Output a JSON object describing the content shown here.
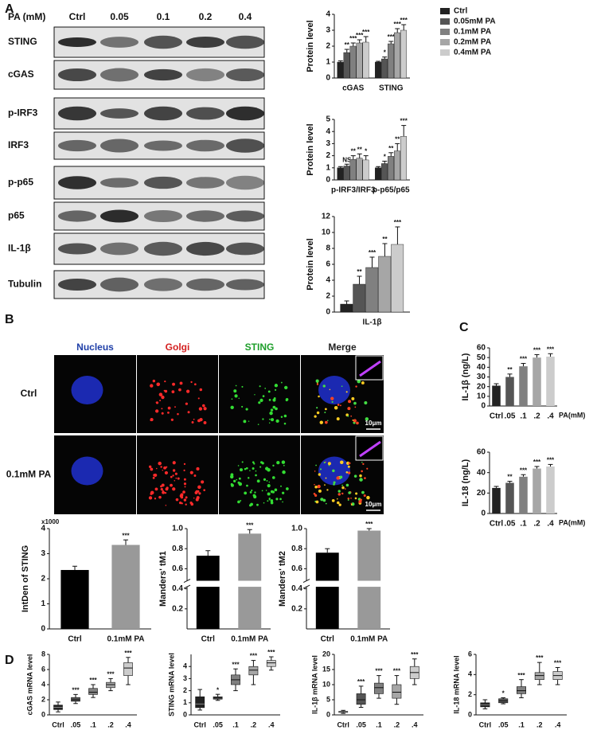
{
  "panels": [
    "A",
    "B",
    "C",
    "D"
  ],
  "blot": {
    "header": "PA (mM)",
    "lanes": [
      "Ctrl",
      "0.05",
      "0.1",
      "0.2",
      "0.4"
    ],
    "rows": [
      "STING",
      "cGAS",
      "p-IRF3",
      "IRF3",
      "p-p65",
      "p65",
      "IL-1β",
      "Tubulin"
    ]
  },
  "imaging": {
    "columns": [
      "Nucleus",
      "Golgi",
      "STING",
      "Merge"
    ],
    "rows": [
      "Ctrl",
      "0.1mM PA"
    ],
    "scale_bars": [
      "10μm",
      "10μm"
    ]
  },
  "chart_data": [
    {
      "type": "bar",
      "ylabel": "Protein level",
      "categories": [
        "cGAS",
        "STING"
      ],
      "ylim": [
        0,
        4
      ],
      "yticks": [
        0,
        1,
        2,
        3,
        4
      ],
      "legend": "right",
      "series": [
        {
          "name": "Ctrl",
          "color": "#222222",
          "values": [
            1,
            1
          ],
          "errors": [
            0.08,
            0.05
          ],
          "annotations": [
            null,
            null
          ]
        },
        {
          "name": "0.05mM PA",
          "color": "#555555",
          "values": [
            1.6,
            1.2
          ],
          "errors": [
            0.2,
            0.12
          ],
          "annotations": [
            "**",
            "*"
          ]
        },
        {
          "name": "0.1mM PA",
          "color": "#808080",
          "values": [
            2.0,
            2.15
          ],
          "errors": [
            0.2,
            0.15
          ],
          "annotations": [
            "***",
            "***"
          ]
        },
        {
          "name": "0.2mM PA",
          "color": "#a6a6a6",
          "values": [
            2.2,
            2.85
          ],
          "errors": [
            0.2,
            0.25
          ],
          "annotations": [
            "***",
            "***"
          ]
        },
        {
          "name": "0.4mM PA",
          "color": "#cccccc",
          "values": [
            2.25,
            3.0
          ],
          "errors": [
            0.35,
            0.35
          ],
          "annotations": [
            "***",
            "***"
          ]
        }
      ]
    },
    {
      "type": "bar",
      "ylabel": "Protein level",
      "categories": [
        "p-IRF3/IRF3",
        "p-p65/p65"
      ],
      "ylim": [
        0,
        5
      ],
      "yticks": [
        0,
        1,
        2,
        3,
        4,
        5
      ],
      "series": [
        {
          "color": "#222222",
          "values": [
            1,
            1
          ],
          "errors": [
            0.1,
            0.1
          ],
          "annotations": [
            null,
            null
          ]
        },
        {
          "color": "#555555",
          "values": [
            1.15,
            1.35
          ],
          "errors": [
            0.15,
            0.2
          ],
          "annotations": [
            "NS",
            "*"
          ]
        },
        {
          "color": "#808080",
          "values": [
            1.7,
            1.95
          ],
          "errors": [
            0.3,
            0.3
          ],
          "annotations": [
            "**",
            "**"
          ]
        },
        {
          "color": "#a6a6a6",
          "values": [
            1.8,
            2.4
          ],
          "errors": [
            0.35,
            0.6
          ],
          "annotations": [
            "**",
            "**"
          ]
        },
        {
          "color": "#cccccc",
          "values": [
            1.65,
            3.6
          ],
          "errors": [
            0.35,
            0.9
          ],
          "annotations": [
            "*",
            "***"
          ]
        }
      ]
    },
    {
      "type": "bar",
      "ylabel": "Protein level",
      "categories": [
        "IL-1β"
      ],
      "ylim": [
        0,
        12
      ],
      "yticks": [
        0,
        2,
        4,
        6,
        8,
        10,
        12
      ],
      "series": [
        {
          "color": "#222222",
          "values": [
            1
          ],
          "errors": [
            0.4
          ],
          "annotations": [
            null
          ]
        },
        {
          "color": "#555555",
          "values": [
            3.5
          ],
          "errors": [
            1.0
          ],
          "annotations": [
            "**"
          ]
        },
        {
          "color": "#808080",
          "values": [
            5.6
          ],
          "errors": [
            1.3
          ],
          "annotations": [
            "***"
          ]
        },
        {
          "color": "#a6a6a6",
          "values": [
            7.0
          ],
          "errors": [
            1.6
          ],
          "annotations": [
            "**"
          ]
        },
        {
          "color": "#cccccc",
          "values": [
            8.5
          ],
          "errors": [
            2.2
          ],
          "annotations": [
            "***"
          ]
        }
      ]
    },
    {
      "type": "bar",
      "ylabel": "IntDen of STING",
      "yscale_label": "x1000",
      "categories": [
        "Ctrl",
        "0.1mM PA"
      ],
      "values": [
        2.35,
        3.35
      ],
      "errors": [
        0.15,
        0.2
      ],
      "colors": [
        "#000000",
        "#999999"
      ],
      "annotations": [
        null,
        "***"
      ],
      "ylim": [
        0,
        4
      ],
      "yticks": [
        0,
        1,
        2,
        3,
        4
      ]
    },
    {
      "type": "bar",
      "ylabel": "Manders' tM1",
      "categories": [
        "Ctrl",
        "0.1mM PA"
      ],
      "values": [
        0.73,
        0.95
      ],
      "errors": [
        0.05,
        0.04
      ],
      "colors": [
        "#000000",
        "#999999"
      ],
      "annotations": [
        null,
        "***"
      ],
      "ylim": [
        0,
        1
      ],
      "ybreak": [
        0.42,
        0.48
      ],
      "yticks": [
        0.2,
        0.4,
        0.6,
        0.8,
        {
          "value": 1,
          "label": "1.0"
        }
      ]
    },
    {
      "type": "bar",
      "ylabel": "Manders' tM2",
      "categories": [
        "Ctrl",
        "0.1mM PA"
      ],
      "values": [
        0.76,
        0.98
      ],
      "errors": [
        0.04,
        0.02
      ],
      "colors": [
        "#000000",
        "#999999"
      ],
      "annotations": [
        null,
        "***"
      ],
      "ylim": [
        0,
        1
      ],
      "ybreak": [
        0.42,
        0.48
      ],
      "yticks": [
        0.2,
        0.4,
        0.6,
        0.8,
        {
          "value": 1,
          "label": "1.0"
        }
      ]
    },
    {
      "type": "bar",
      "ylabel": "IL-1β (ng/L)",
      "xlabel": "PA(mM)",
      "categories": [
        "Ctrl",
        ".05",
        ".1",
        ".2",
        ".4"
      ],
      "values": [
        21,
        30,
        41,
        50,
        51
      ],
      "errors": [
        2,
        3,
        3,
        3,
        3
      ],
      "colors": [
        "#222222",
        "#555555",
        "#808080",
        "#a6a6a6",
        "#cccccc"
      ],
      "annotations": [
        null,
        "**",
        "***",
        "***",
        "***"
      ],
      "ylim": [
        0,
        60
      ],
      "yticks": [
        0,
        10,
        20,
        30,
        40,
        50,
        60
      ]
    },
    {
      "type": "bar",
      "ylabel": "IL-18 (ng/L)",
      "xlabel": "PA(mM)",
      "categories": [
        "Ctrl",
        ".05",
        ".1",
        ".2",
        ".4"
      ],
      "values": [
        25,
        30,
        36,
        44,
        46
      ],
      "errors": [
        1.5,
        1.5,
        2,
        2,
        2
      ],
      "colors": [
        "#222222",
        "#555555",
        "#808080",
        "#a6a6a6",
        "#cccccc"
      ],
      "annotations": [
        null,
        "**",
        "***",
        "***",
        "***"
      ],
      "ylim": [
        0,
        60
      ],
      "yticks": [
        0,
        20,
        40,
        60
      ]
    },
    {
      "type": "box",
      "ylabel": "cGAS mRNA level",
      "categories": [
        "Ctrl",
        ".05",
        ".1",
        ".2",
        ".4"
      ],
      "ylim": [
        0,
        8
      ],
      "yticks": [
        0,
        2,
        4,
        6,
        8
      ],
      "colors": [
        "#222222",
        "#555555",
        "#808080",
        "#a6a6a6",
        "#cccccc"
      ],
      "annotations": [
        null,
        "***",
        "***",
        "***",
        "***"
      ],
      "boxes": [
        {
          "min": 0.4,
          "q1": 0.7,
          "median": 1.0,
          "q3": 1.3,
          "max": 1.7
        },
        {
          "min": 1.5,
          "q1": 1.8,
          "median": 2.0,
          "q3": 2.3,
          "max": 2.7
        },
        {
          "min": 2.3,
          "q1": 2.7,
          "median": 3.0,
          "q3": 3.5,
          "max": 4.0
        },
        {
          "min": 3.2,
          "q1": 3.6,
          "median": 4.0,
          "q3": 4.3,
          "max": 4.8
        },
        {
          "min": 4.0,
          "q1": 5.2,
          "median": 6.2,
          "q3": 6.9,
          "max": 7.6
        }
      ]
    },
    {
      "type": "box",
      "ylabel": "STING mRNA level",
      "categories": [
        "Ctrl",
        ".05",
        ".1",
        ".2",
        ".4"
      ],
      "ylim": [
        0,
        5
      ],
      "yticks": [
        0,
        1,
        2,
        3,
        4
      ],
      "colors": [
        "#222222",
        "#555555",
        "#808080",
        "#a6a6a6",
        "#cccccc"
      ],
      "annotations": [
        null,
        "*",
        "***",
        "***",
        "***"
      ],
      "boxes": [
        {
          "min": 0.4,
          "q1": 0.6,
          "median": 0.9,
          "q3": 1.5,
          "max": 2.1
        },
        {
          "min": 1.2,
          "q1": 1.3,
          "median": 1.4,
          "q3": 1.5,
          "max": 1.7
        },
        {
          "min": 2.0,
          "q1": 2.5,
          "median": 2.9,
          "q3": 3.3,
          "max": 3.8
        },
        {
          "min": 2.5,
          "q1": 3.3,
          "median": 3.7,
          "q3": 4.0,
          "max": 4.5
        },
        {
          "min": 3.7,
          "q1": 4.0,
          "median": 4.3,
          "q3": 4.5,
          "max": 4.8
        }
      ]
    },
    {
      "type": "box",
      "ylabel": "IL-1β mRNA level",
      "categories": [
        "Ctrl",
        ".05",
        ".1",
        ".2",
        ".4"
      ],
      "ylim": [
        0,
        20
      ],
      "yticks": [
        0,
        5,
        10,
        15,
        20
      ],
      "colors": [
        "#222222",
        "#555555",
        "#808080",
        "#a6a6a6",
        "#cccccc"
      ],
      "annotations": [
        null,
        "***",
        "***",
        "***",
        "***"
      ],
      "boxes": [
        {
          "min": 0.5,
          "q1": 0.8,
          "median": 1.0,
          "q3": 1.2,
          "max": 1.5
        },
        {
          "min": 2.5,
          "q1": 3.5,
          "median": 5,
          "q3": 7,
          "max": 9.5
        },
        {
          "min": 5.5,
          "q1": 7,
          "median": 9,
          "q3": 10.5,
          "max": 13
        },
        {
          "min": 3.5,
          "q1": 5.5,
          "median": 7.5,
          "q3": 10,
          "max": 13
        },
        {
          "min": 10,
          "q1": 12,
          "median": 14,
          "q3": 16,
          "max": 18.5
        }
      ]
    },
    {
      "type": "box",
      "ylabel": "IL-18 mRNA level",
      "categories": [
        "Ctrl",
        ".05",
        ".1",
        ".2",
        ".4"
      ],
      "ylim": [
        0,
        6
      ],
      "yticks": [
        0,
        2,
        4,
        6
      ],
      "colors": [
        "#222222",
        "#555555",
        "#808080",
        "#a6a6a6",
        "#cccccc"
      ],
      "annotations": [
        null,
        "*",
        "***",
        "***",
        "***"
      ],
      "boxes": [
        {
          "min": 0.6,
          "q1": 0.8,
          "median": 1.0,
          "q3": 1.2,
          "max": 1.5
        },
        {
          "min": 1.1,
          "q1": 1.2,
          "median": 1.4,
          "q3": 1.6,
          "max": 1.7
        },
        {
          "min": 1.7,
          "q1": 2.1,
          "median": 2.4,
          "q3": 2.8,
          "max": 3.5
        },
        {
          "min": 3.0,
          "q1": 3.5,
          "median": 3.9,
          "q3": 4.2,
          "max": 5.2
        },
        {
          "min": 3.0,
          "q1": 3.5,
          "median": 3.9,
          "q3": 4.3,
          "max": 4.7
        }
      ]
    }
  ]
}
